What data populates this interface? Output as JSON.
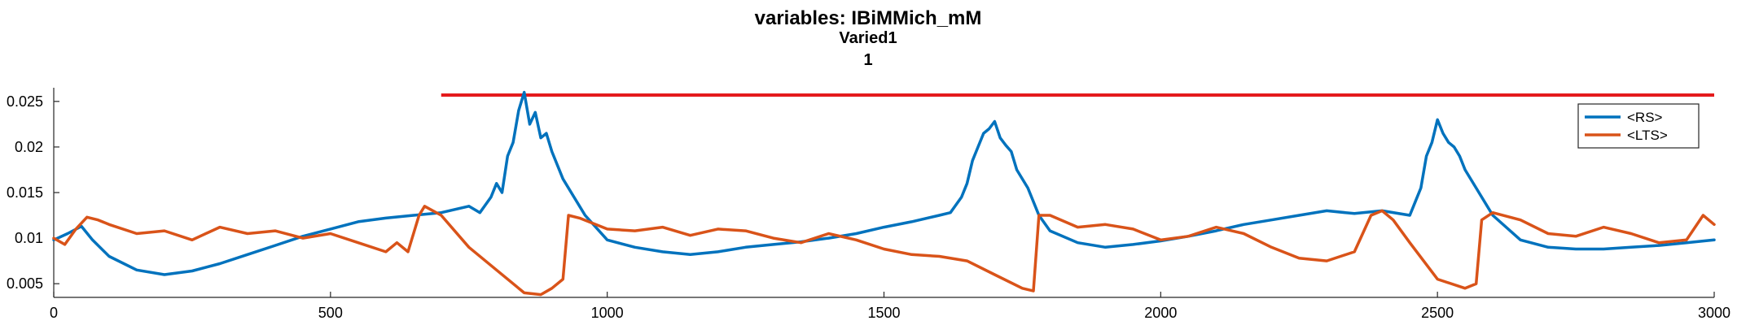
{
  "chart_data": {
    "type": "line",
    "title": "variables: IBiMMich_mM",
    "subtitle": [
      "Varied1",
      "1"
    ],
    "xlabel": "",
    "ylabel": "",
    "xlim": [
      0,
      3000
    ],
    "ylim": [
      0.0035,
      0.0265
    ],
    "xticks": [
      0,
      500,
      1000,
      1500,
      2000,
      2500,
      3000
    ],
    "xtick_labels": [
      "0",
      "500",
      "1000",
      "1500",
      "2000",
      "2500",
      "3000"
    ],
    "yticks": [
      0.005,
      0.01,
      0.015,
      0.02,
      0.025
    ],
    "ytick_labels": [
      "0.005",
      "0.01",
      "0.015",
      "0.02",
      "0.025"
    ],
    "grid": false,
    "legend_position": "top-right",
    "reference_line": {
      "color": "#e41a1c",
      "x": [
        700,
        3000
      ],
      "y": 0.0257
    },
    "series": [
      {
        "name": "<RS>",
        "color": "#0072bd",
        "x": [
          0,
          25,
          50,
          70,
          100,
          150,
          200,
          250,
          300,
          350,
          400,
          450,
          500,
          550,
          600,
          650,
          700,
          750,
          770,
          790,
          800,
          810,
          820,
          830,
          840,
          850,
          860,
          870,
          880,
          890,
          900,
          920,
          940,
          960,
          1000,
          1050,
          1100,
          1150,
          1200,
          1250,
          1300,
          1350,
          1400,
          1450,
          1500,
          1550,
          1600,
          1620,
          1640,
          1650,
          1660,
          1670,
          1680,
          1690,
          1700,
          1710,
          1720,
          1730,
          1740,
          1760,
          1780,
          1800,
          1850,
          1900,
          1950,
          2000,
          2050,
          2100,
          2150,
          2200,
          2250,
          2300,
          2350,
          2400,
          2450,
          2460,
          2470,
          2480,
          2490,
          2500,
          2510,
          2520,
          2530,
          2540,
          2550,
          2570,
          2600,
          2650,
          2700,
          2750,
          2800,
          2850,
          2900,
          2950,
          3000
        ],
        "y": [
          0.0098,
          0.0105,
          0.0113,
          0.0098,
          0.008,
          0.0065,
          0.006,
          0.0064,
          0.0072,
          0.0082,
          0.0092,
          0.0102,
          0.011,
          0.0118,
          0.0122,
          0.0125,
          0.0128,
          0.0135,
          0.0128,
          0.0145,
          0.016,
          0.015,
          0.019,
          0.0205,
          0.024,
          0.026,
          0.0225,
          0.0238,
          0.021,
          0.0215,
          0.0195,
          0.0165,
          0.0145,
          0.0125,
          0.0098,
          0.009,
          0.0085,
          0.0082,
          0.0085,
          0.009,
          0.0093,
          0.0096,
          0.01,
          0.0105,
          0.0112,
          0.0118,
          0.0125,
          0.0128,
          0.0145,
          0.016,
          0.0185,
          0.02,
          0.0215,
          0.022,
          0.0228,
          0.021,
          0.0202,
          0.0195,
          0.0175,
          0.0155,
          0.0125,
          0.0108,
          0.0095,
          0.009,
          0.0093,
          0.0097,
          0.0102,
          0.0108,
          0.0115,
          0.012,
          0.0125,
          0.013,
          0.0127,
          0.013,
          0.0125,
          0.014,
          0.0155,
          0.019,
          0.0205,
          0.023,
          0.0215,
          0.0205,
          0.02,
          0.019,
          0.0175,
          0.0155,
          0.0125,
          0.0098,
          0.009,
          0.0088,
          0.0088,
          0.009,
          0.0092,
          0.0095,
          0.0098
        ]
      },
      {
        "name": "<LTS>",
        "color": "#d95319",
        "x": [
          0,
          20,
          40,
          60,
          80,
          100,
          150,
          200,
          250,
          300,
          350,
          400,
          450,
          500,
          550,
          600,
          620,
          640,
          660,
          670,
          700,
          750,
          800,
          850,
          880,
          900,
          920,
          930,
          950,
          1000,
          1050,
          1100,
          1150,
          1200,
          1250,
          1300,
          1350,
          1400,
          1450,
          1500,
          1550,
          1600,
          1650,
          1700,
          1750,
          1770,
          1780,
          1800,
          1850,
          1900,
          1950,
          2000,
          2050,
          2100,
          2150,
          2200,
          2250,
          2300,
          2350,
          2380,
          2400,
          2420,
          2450,
          2500,
          2550,
          2570,
          2580,
          2600,
          2650,
          2700,
          2750,
          2800,
          2850,
          2900,
          2950,
          2980,
          3000
        ],
        "y": [
          0.01,
          0.0093,
          0.011,
          0.0123,
          0.012,
          0.0115,
          0.0105,
          0.0108,
          0.0098,
          0.0112,
          0.0105,
          0.0108,
          0.01,
          0.0105,
          0.0095,
          0.0085,
          0.0095,
          0.0085,
          0.0125,
          0.0135,
          0.0125,
          0.009,
          0.0065,
          0.004,
          0.0038,
          0.0045,
          0.0055,
          0.0125,
          0.0122,
          0.011,
          0.0108,
          0.0112,
          0.0103,
          0.011,
          0.0108,
          0.01,
          0.0095,
          0.0105,
          0.0098,
          0.0088,
          0.0082,
          0.008,
          0.0075,
          0.006,
          0.0045,
          0.0042,
          0.0125,
          0.0125,
          0.0112,
          0.0115,
          0.011,
          0.0098,
          0.0102,
          0.0112,
          0.0105,
          0.009,
          0.0078,
          0.0075,
          0.0085,
          0.0125,
          0.013,
          0.012,
          0.0095,
          0.0055,
          0.0045,
          0.005,
          0.012,
          0.0128,
          0.012,
          0.0105,
          0.0102,
          0.0112,
          0.0105,
          0.0095,
          0.0098,
          0.0125,
          0.0115
        ]
      }
    ]
  }
}
